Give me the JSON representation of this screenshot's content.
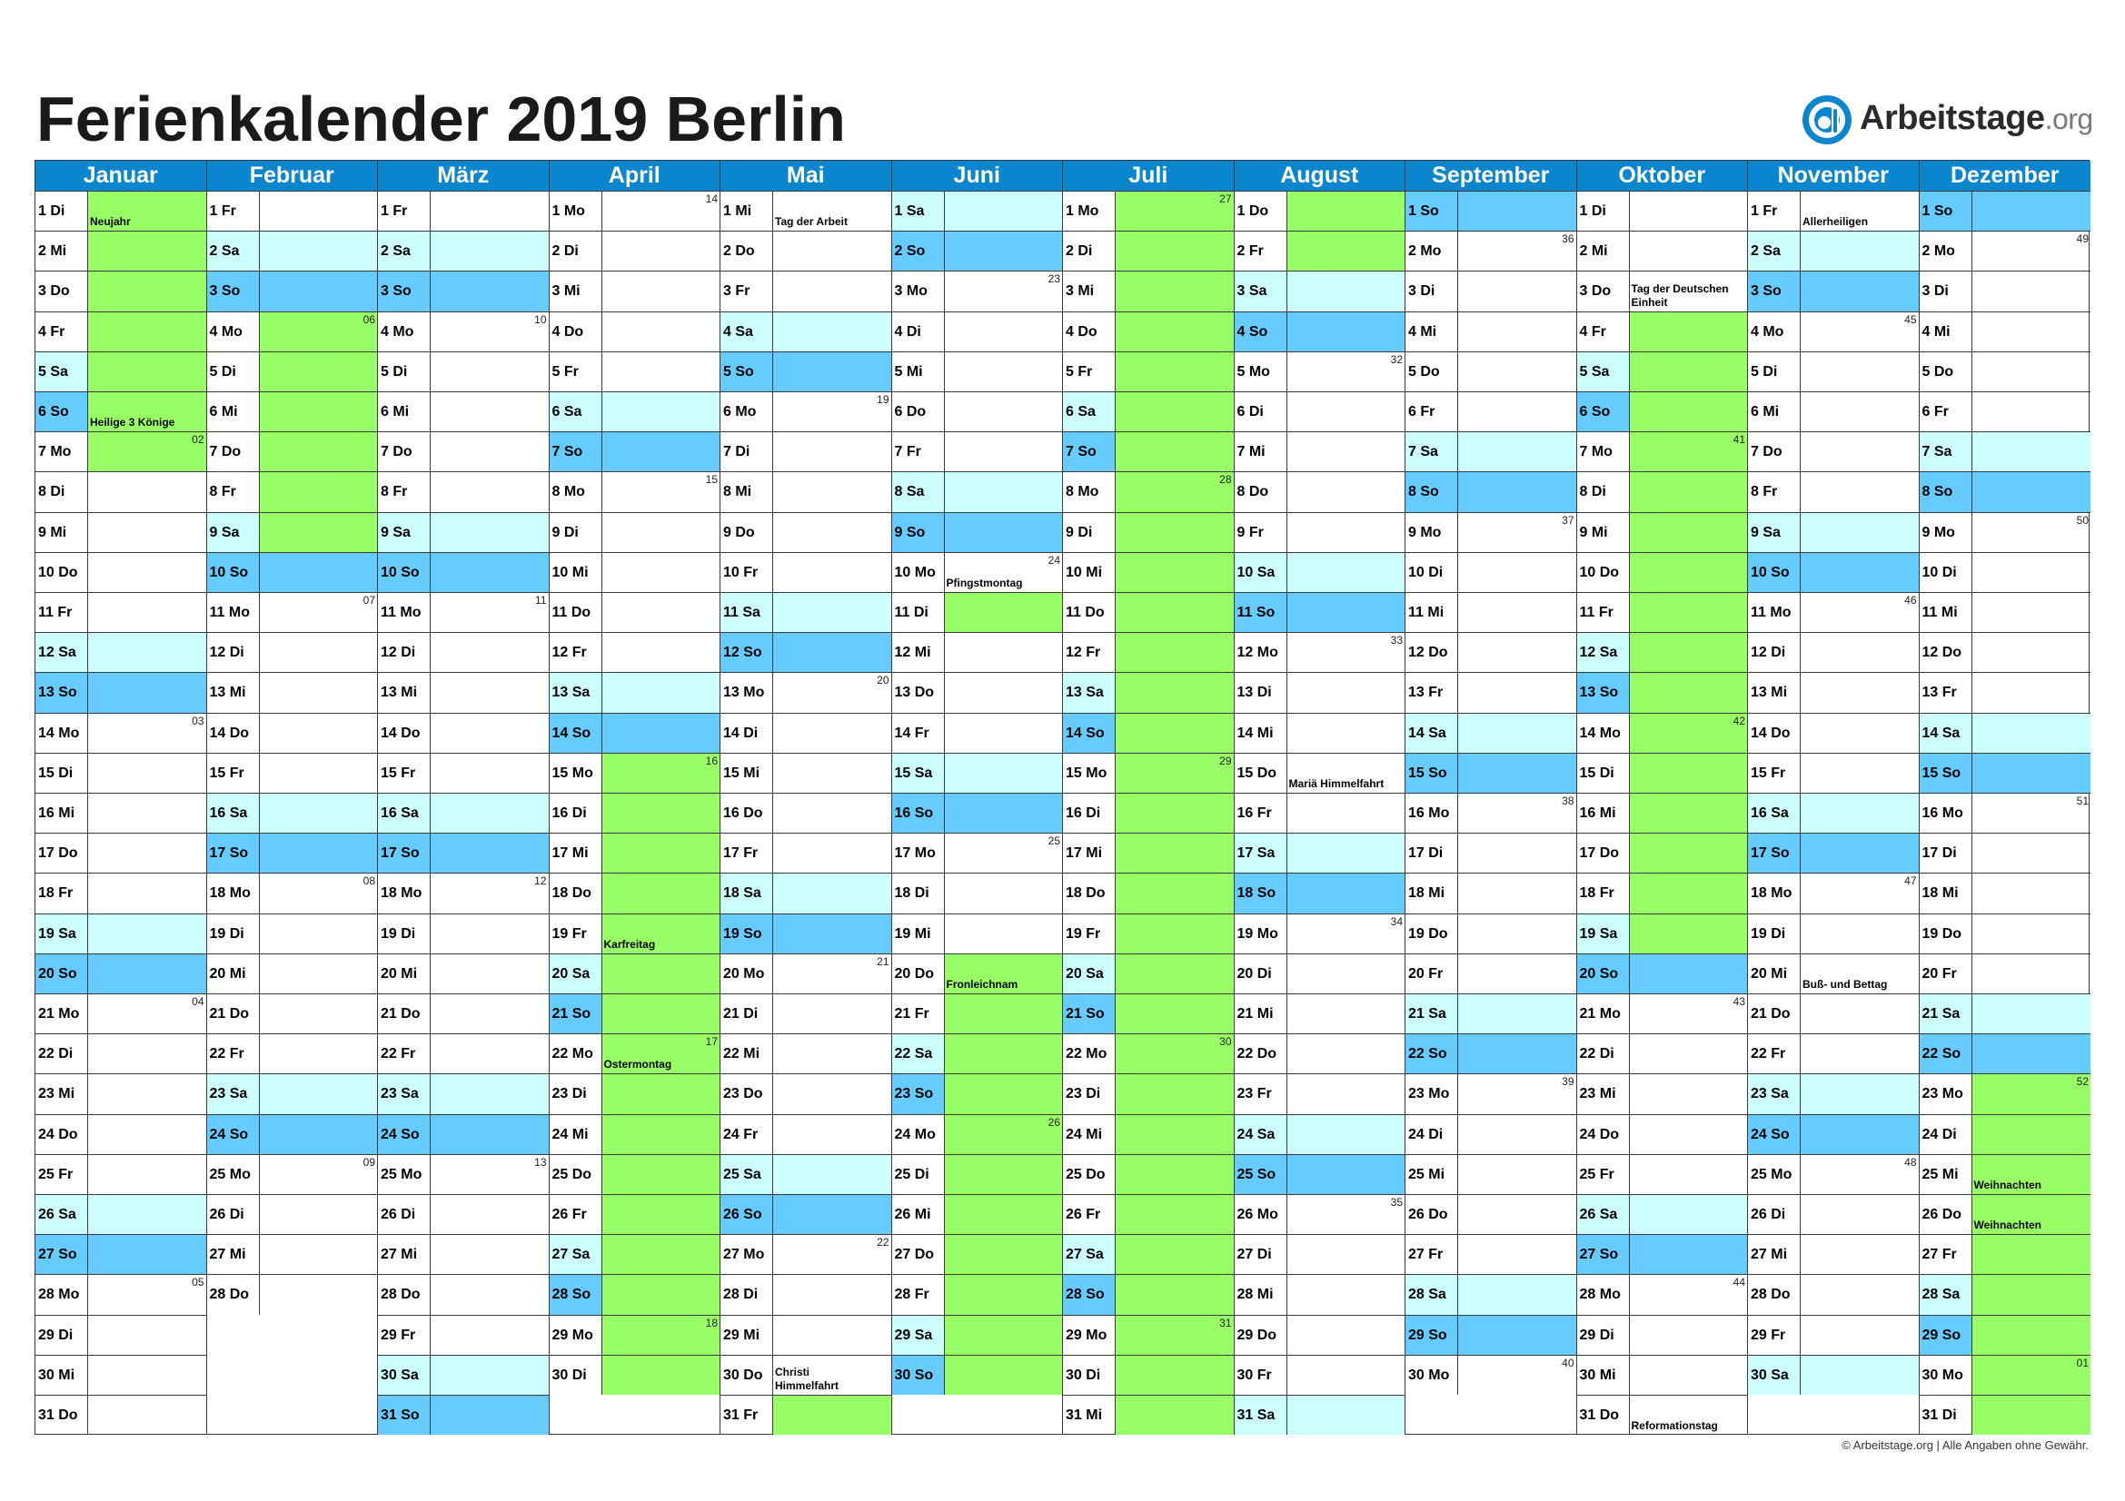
{
  "title": "Ferienkalender 2019 Berlin",
  "logo": {
    "name": "Arbeitstage",
    "domain": ".org",
    "icon": "arbeitstage-logo-icon"
  },
  "footer": "© Arbeitstage.org | Alle Angaben ohne Gewähr.",
  "colors": {
    "header": "#0a86cf",
    "saturday": "#ccffff",
    "sunday": "#66ccff",
    "holiday": "#99ff66",
    "grid": "#3a3a3a"
  },
  "weekdays": [
    "So",
    "Mo",
    "Di",
    "Mi",
    "Do",
    "Fr",
    "Sa"
  ],
  "months": [
    {
      "name": "Januar",
      "days": 31,
      "startWeekday": 2,
      "holidays": [
        [
          1,
          7
        ]
      ],
      "holidayNames": {
        "1": "Neujahr",
        "6": "Heilige 3 Könige"
      }
    },
    {
      "name": "Februar",
      "days": 28,
      "startWeekday": 5,
      "holidays": [
        [
          4,
          9
        ]
      ],
      "holidayNames": {}
    },
    {
      "name": "März",
      "days": 31,
      "startWeekday": 5,
      "holidays": [],
      "holidayNames": {}
    },
    {
      "name": "April",
      "days": 30,
      "startWeekday": 1,
      "holidays": [
        [
          15,
          30
        ]
      ],
      "holidayNames": {
        "19": "Karfreitag",
        "22": "Ostermontag"
      }
    },
    {
      "name": "Mai",
      "days": 31,
      "startWeekday": 3,
      "holidays": [
        [
          31,
          31
        ]
      ],
      "holidayNames": {
        "1": "Tag der Arbeit",
        "30": "Christi Himmelfahrt"
      }
    },
    {
      "name": "Juni",
      "days": 30,
      "startWeekday": 6,
      "holidays": [
        [
          11,
          11
        ],
        [
          20,
          30
        ]
      ],
      "holidayNames": {
        "10": "Pfingstmontag",
        "20": "Fronleichnam"
      }
    },
    {
      "name": "Juli",
      "days": 31,
      "startWeekday": 1,
      "holidays": [
        [
          1,
          31
        ]
      ],
      "holidayNames": {}
    },
    {
      "name": "August",
      "days": 31,
      "startWeekday": 4,
      "holidays": [
        [
          1,
          2
        ]
      ],
      "holidayNames": {
        "15": "Mariä Himmelfahrt"
      }
    },
    {
      "name": "September",
      "days": 30,
      "startWeekday": 0,
      "holidays": [],
      "holidayNames": {}
    },
    {
      "name": "Oktober",
      "days": 31,
      "startWeekday": 2,
      "holidays": [
        [
          4,
          19
        ]
      ],
      "holidayNames": {
        "3": "Tag der Deutschen Einheit",
        "31": "Reformationstag"
      }
    },
    {
      "name": "November",
      "days": 30,
      "startWeekday": 5,
      "holidays": [],
      "holidayNames": {
        "1": "Allerheiligen",
        "20": "Buß- und Bettag"
      }
    },
    {
      "name": "Dezember",
      "days": 31,
      "startWeekday": 0,
      "holidays": [
        [
          23,
          31
        ]
      ],
      "holidayNames": {
        "25": "Weihnachten",
        "26": "Weihnachten"
      }
    }
  ]
}
